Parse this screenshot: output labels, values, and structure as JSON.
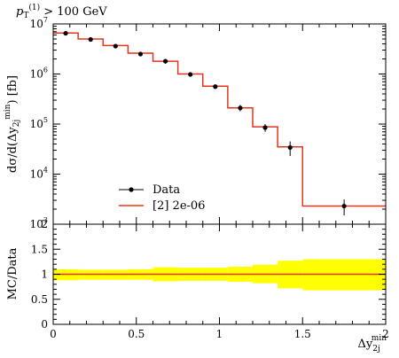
{
  "chart_data": [
    {
      "panel": "main",
      "type": "line",
      "title_main": "p",
      "title_sub": "T",
      "title_sup": "(1)",
      "title_rest": " > 100 GeV",
      "ylabel": "dσ/d(Δy",
      "ylabel_sub": "2j",
      "ylabel_sup": "min",
      "ylabel_rest": ") [fb]",
      "yscale": "log",
      "ylim": [
        1000,
        10000000
      ],
      "yticks": [
        {
          "label": "10",
          "exp": "3",
          "value": 1000
        },
        {
          "label": "10",
          "exp": "4",
          "value": 10000
        },
        {
          "label": "10",
          "exp": "5",
          "value": 100000
        },
        {
          "label": "10",
          "exp": "6",
          "value": 1000000
        },
        {
          "label": "10",
          "exp": "7",
          "value": 10000000
        }
      ],
      "xlim": [
        0,
        2
      ],
      "legend_position": "bottom-left",
      "series": [
        {
          "name": "Data",
          "kind": "points",
          "color": "#000000",
          "x": [
            0.075,
            0.225,
            0.375,
            0.525,
            0.675,
            0.825,
            0.975,
            1.125,
            1.275,
            1.425,
            1.75
          ],
          "y": [
            6500000,
            4900000,
            3600000,
            2500000,
            1800000,
            980000,
            560000,
            210000,
            85000,
            34000,
            2300
          ],
          "err_low": [
            400000,
            300000,
            200000,
            150000,
            200000,
            80000,
            40000,
            30000,
            15000,
            11000,
            800
          ],
          "err_high": [
            400000,
            300000,
            200000,
            150000,
            200000,
            80000,
            40000,
            30000,
            15000,
            11000,
            800
          ]
        },
        {
          "name": "[2] 2e-06",
          "kind": "step",
          "color": "#e8341c",
          "edges": [
            0,
            0.15,
            0.3,
            0.45,
            0.6,
            0.75,
            0.9,
            1.05,
            1.2,
            1.35,
            1.5,
            2.0
          ],
          "values": [
            6600000,
            5000000,
            3700000,
            2600000,
            1800000,
            1000000,
            570000,
            210000,
            88000,
            35000,
            2300
          ]
        }
      ]
    },
    {
      "panel": "ratio",
      "type": "area",
      "ylabel": "MC/Data",
      "xlabel": "Δy",
      "xlabel_sub": "2j",
      "xlabel_sup": "min",
      "xlim": [
        0,
        2
      ],
      "ylim": [
        0,
        2
      ],
      "xticks": [
        "0",
        "0.5",
        "1",
        "1.5",
        "2"
      ],
      "yticks": [
        "0",
        "0.5",
        "1",
        "1.5",
        "2"
      ],
      "band_color": "#ffff00",
      "line_color": "#e8341c",
      "edges": [
        0,
        0.15,
        0.3,
        0.45,
        0.6,
        0.75,
        0.9,
        1.05,
        1.2,
        1.35,
        1.5,
        2.0
      ],
      "band_low": [
        0.88,
        0.89,
        0.89,
        0.89,
        0.86,
        0.87,
        0.87,
        0.85,
        0.82,
        0.72,
        0.68
      ],
      "band_high": [
        1.1,
        1.09,
        1.09,
        1.1,
        1.14,
        1.13,
        1.13,
        1.15,
        1.19,
        1.27,
        1.3
      ],
      "ratio": [
        1,
        1,
        1,
        1,
        1,
        1,
        1,
        1,
        1,
        1,
        1
      ]
    }
  ]
}
